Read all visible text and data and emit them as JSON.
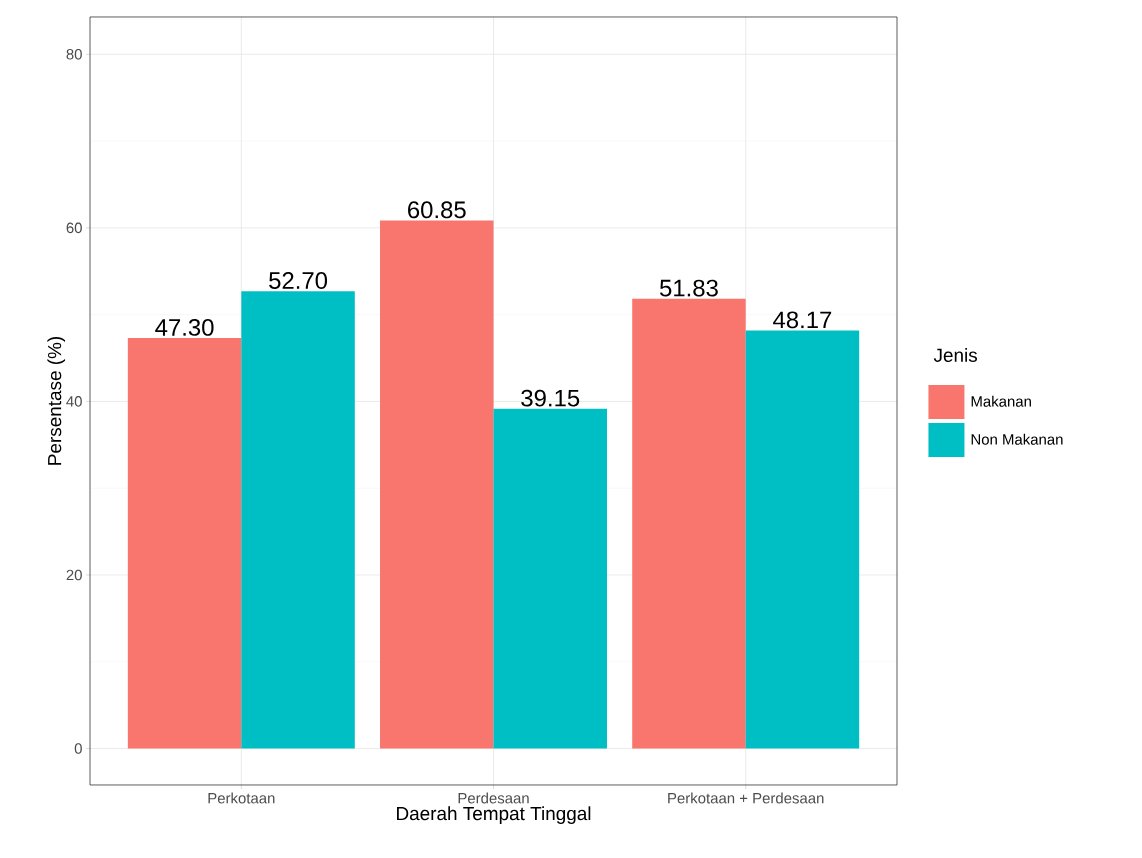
{
  "chart_data": {
    "type": "bar",
    "xlabel": "Daerah Tempat Tinggal",
    "ylabel": "Persentase (%)",
    "legend_title": "Jenis",
    "categories": [
      "Perkotaan",
      "Perdesaan",
      "Perkotaan + Perdesaan"
    ],
    "series": [
      {
        "name": "Makanan",
        "color": "#f8766d",
        "values": [
          47.3,
          60.85,
          51.83
        ],
        "value_labels": [
          "47.30",
          "60.85",
          "51.83"
        ]
      },
      {
        "name": "Non Makanan",
        "color": "#00bfc4",
        "values": [
          52.7,
          39.15,
          48.17
        ],
        "value_labels": [
          "52.70",
          "39.15",
          "48.17"
        ]
      }
    ],
    "ylim": [
      -4.2,
      84.3
    ],
    "yticks": [
      0,
      20,
      40,
      60,
      80
    ],
    "grid": true,
    "legend": "right"
  }
}
